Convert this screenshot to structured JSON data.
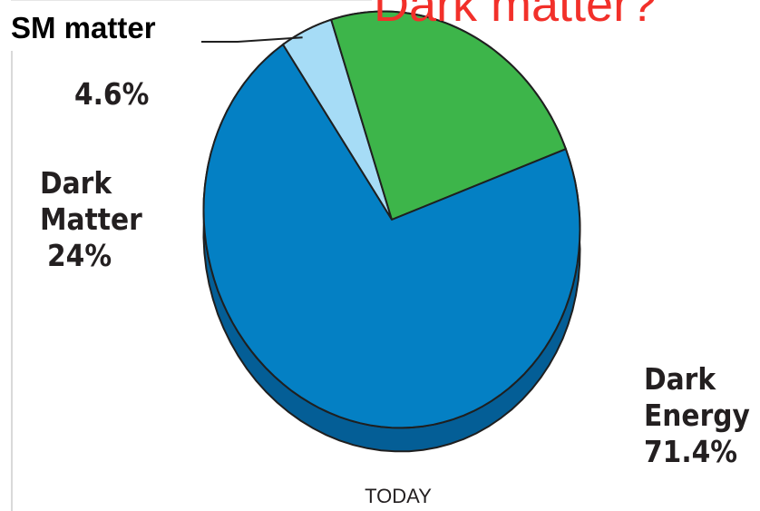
{
  "slide": {
    "title": "Dark matter?",
    "callout": "SM matter"
  },
  "colors": {
    "dark_energy": "#0480c4",
    "dark_energy_side": "#045e96",
    "dark_matter": "#3db54a",
    "dark_matter_side": "#2a8e36",
    "sm_matter": "#a6dcf6",
    "outline": "#1f1f1f",
    "title": "#f2302a"
  },
  "chart_data": {
    "type": "pie",
    "style": "3d-perspective",
    "caption": "TODAY",
    "slices": [
      {
        "label": "",
        "line1": "",
        "line2": "",
        "value_label": "4.6%",
        "value": 4.6
      },
      {
        "label": "Dark Matter",
        "line1": "Dark",
        "line2": "Matter",
        "value_label": "24%",
        "value": 24
      },
      {
        "label": "Dark Energy",
        "line1": "Dark",
        "line2": "Energy",
        "value_label": "71.4%",
        "value": 71.4
      }
    ]
  }
}
